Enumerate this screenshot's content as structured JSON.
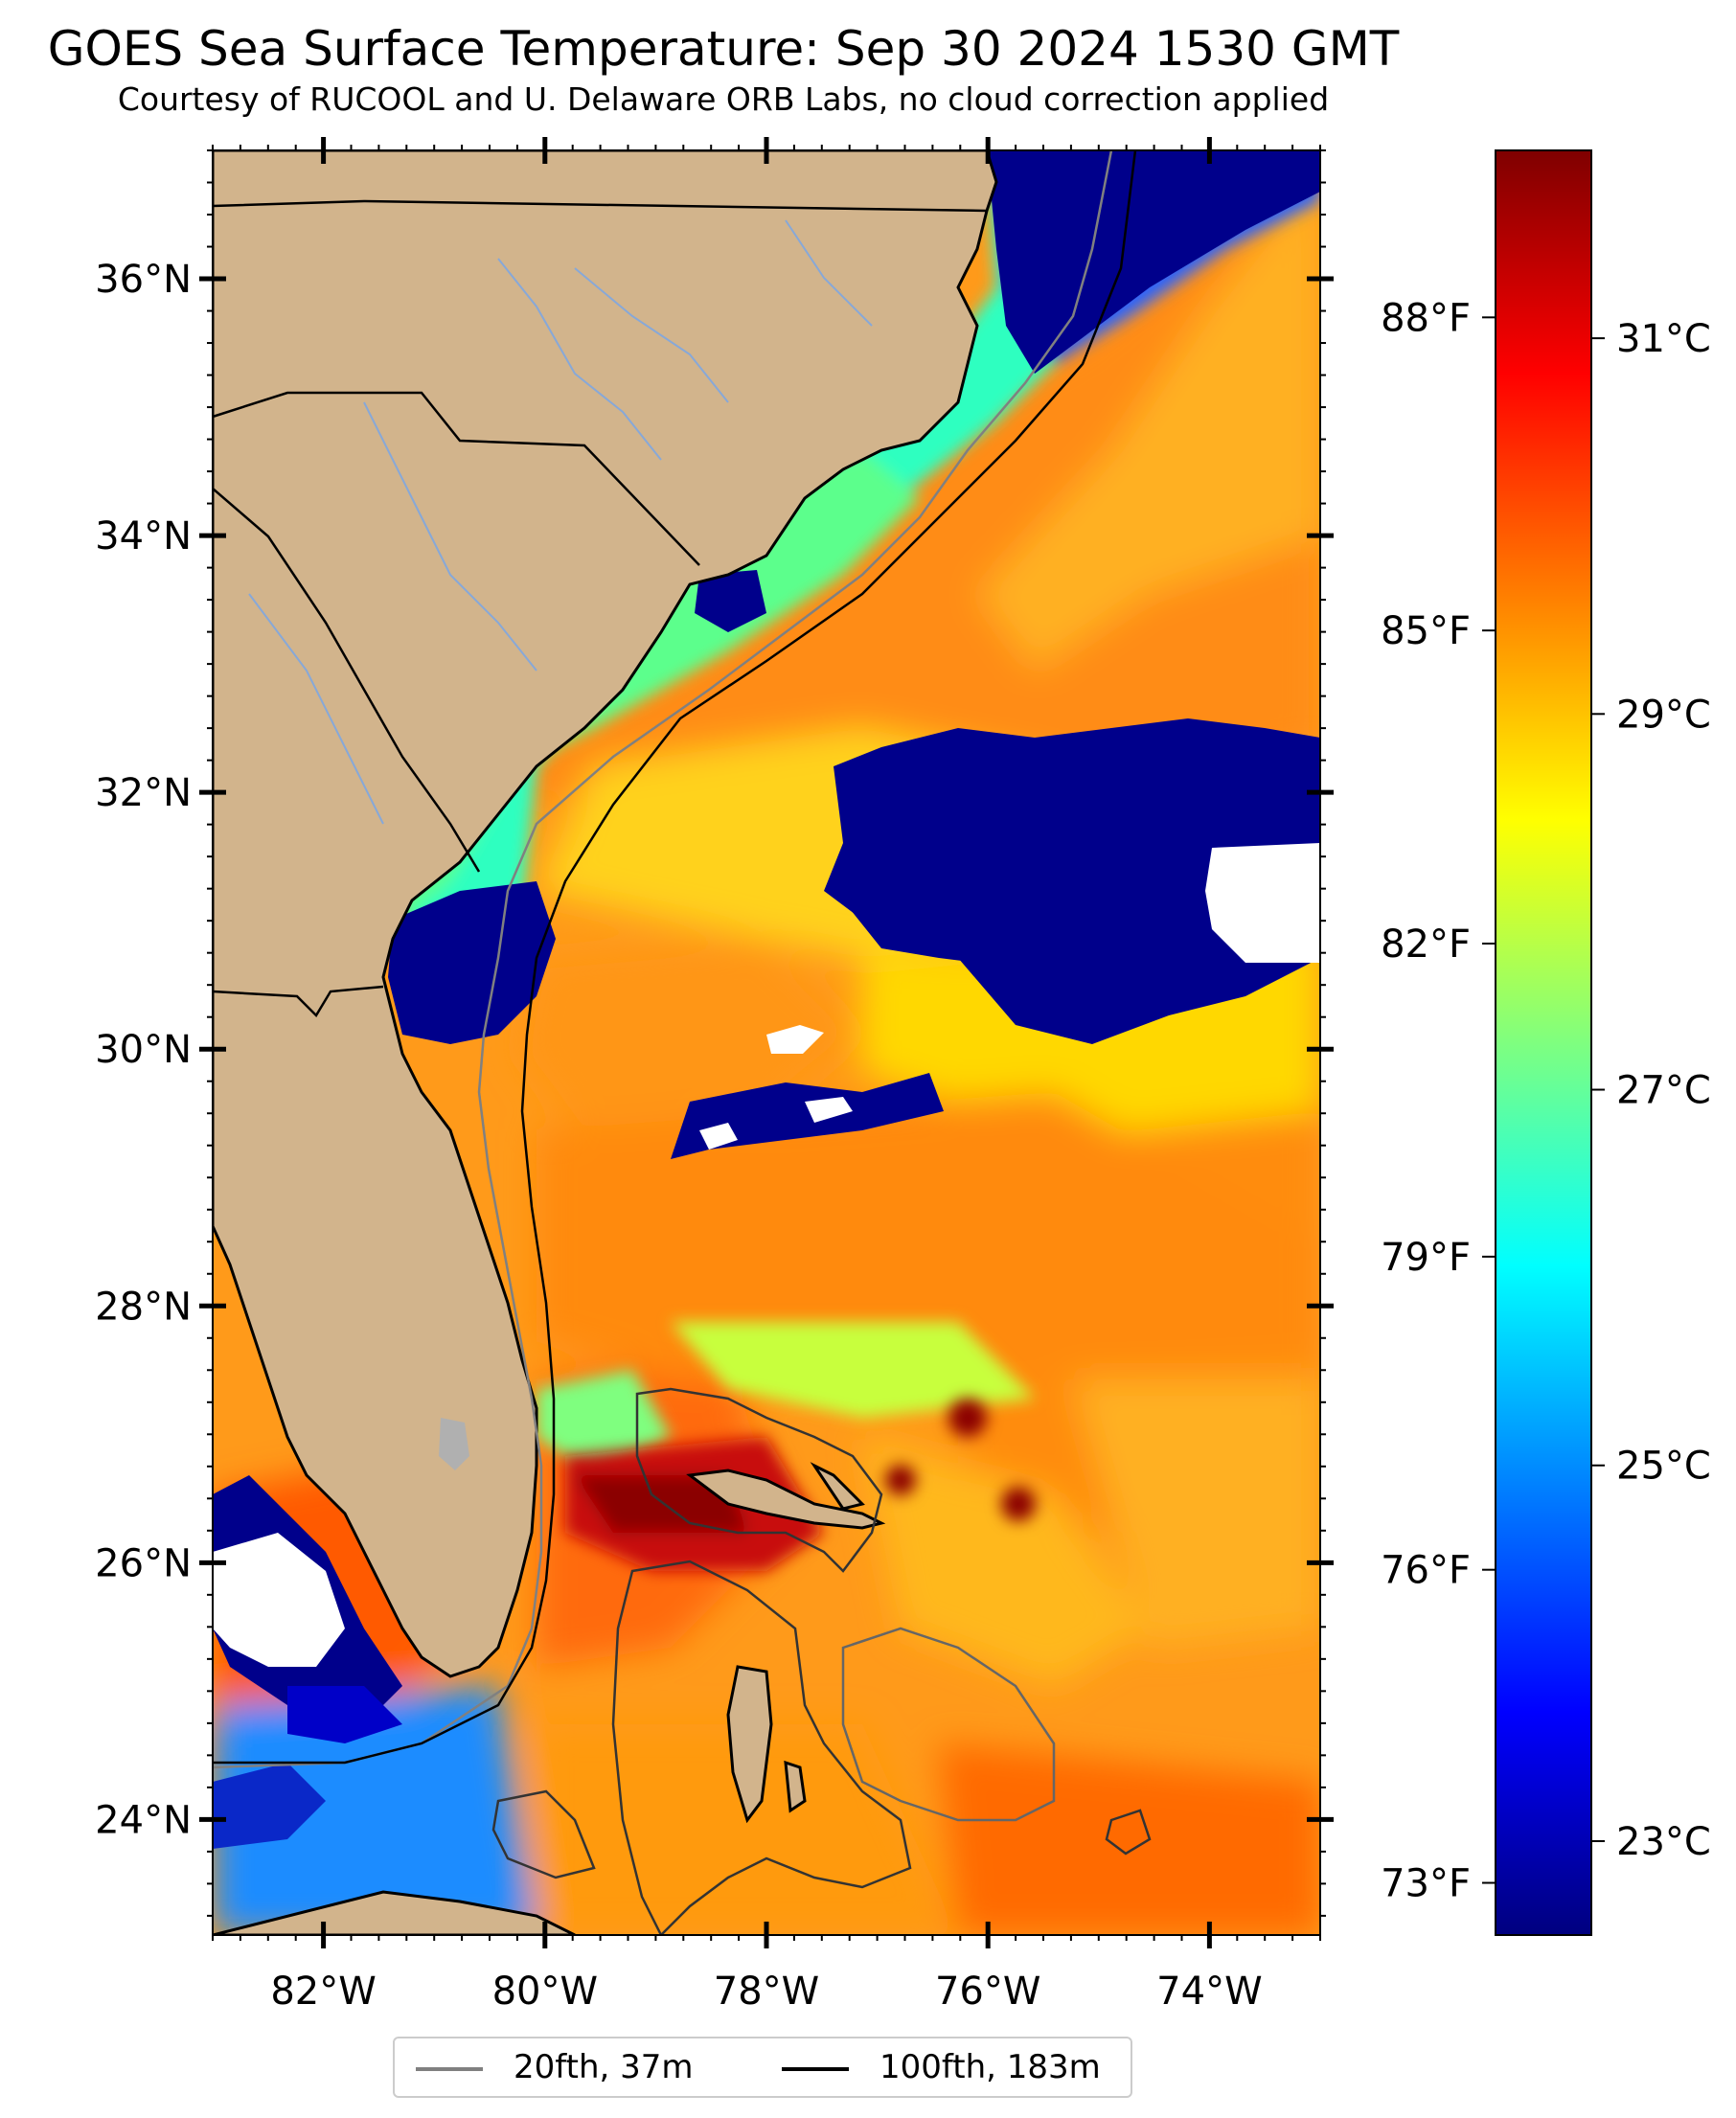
{
  "title": "GOES Sea Surface Temperature: Sep 30 2024 1530 GMT",
  "subtitle": "Courtesy of RUCOOL and U. Delaware ORB Labs, no cloud correction applied",
  "map": {
    "lon_range": [
      -83,
      -73
    ],
    "lat_range": [
      23.1,
      37.0
    ],
    "lon_ticks": [
      {
        "value": -82,
        "label": "82°W"
      },
      {
        "value": -80,
        "label": "80°W"
      },
      {
        "value": -78,
        "label": "78°W"
      },
      {
        "value": -76,
        "label": "76°W"
      },
      {
        "value": -74,
        "label": "74°W"
      }
    ],
    "lat_ticks": [
      {
        "value": 36,
        "label": "36°N"
      },
      {
        "value": 34,
        "label": "34°N"
      },
      {
        "value": 32,
        "label": "32°N"
      },
      {
        "value": 30,
        "label": "30°N"
      },
      {
        "value": 28,
        "label": "28°N"
      },
      {
        "value": 26,
        "label": "26°N"
      },
      {
        "value": 24,
        "label": "24°N"
      }
    ],
    "colors": {
      "land": "#d2b48c",
      "cloud": "#00008b",
      "no_data": "#ffffff",
      "coast": "#000000",
      "rivers": "#87a8d8",
      "isobath_20": "#808080",
      "isobath_100": "#000000"
    }
  },
  "colorbar": {
    "colormap": "jet",
    "range_c": [
      22.5,
      32.0
    ],
    "stops": [
      "#00007f",
      "#0000ff",
      "#007fff",
      "#00ffff",
      "#7fff7f",
      "#ffff00",
      "#ff7f00",
      "#ff0000",
      "#7f0000"
    ],
    "celsius_ticks": [
      {
        "value": 31,
        "label": "31°C"
      },
      {
        "value": 29,
        "label": "29°C"
      },
      {
        "value": 27,
        "label": "27°C"
      },
      {
        "value": 25,
        "label": "25°C"
      },
      {
        "value": 23,
        "label": "23°C"
      }
    ],
    "fahrenheit_ticks": [
      {
        "value": 88,
        "label": "88°F"
      },
      {
        "value": 85,
        "label": "85°F"
      },
      {
        "value": 82,
        "label": "82°F"
      },
      {
        "value": 79,
        "label": "79°F"
      },
      {
        "value": 76,
        "label": "76°F"
      },
      {
        "value": 73,
        "label": "73°F"
      }
    ]
  },
  "legend": {
    "items": [
      {
        "label": "20fth, 37m",
        "color": "#808080"
      },
      {
        "label": "100fth, 183m",
        "color": "#000000"
      }
    ]
  }
}
